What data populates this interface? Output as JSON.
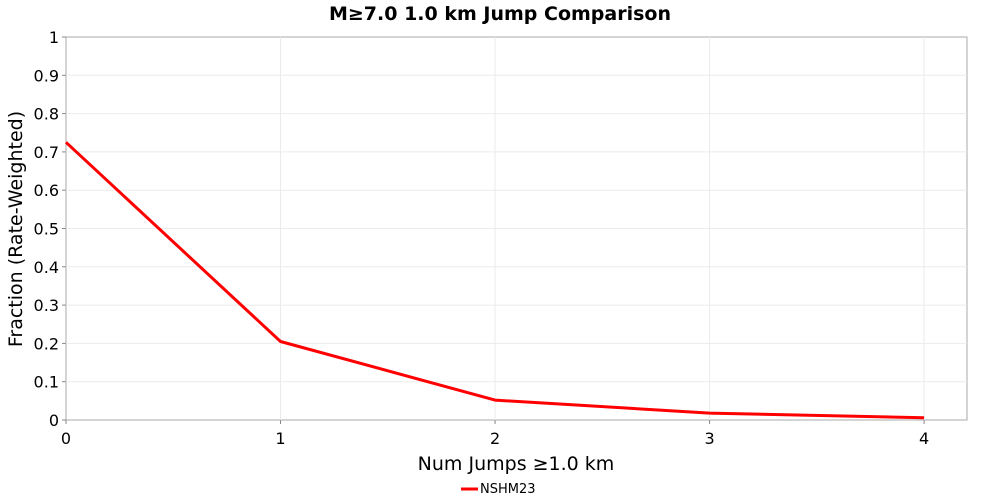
{
  "chart_data": {
    "type": "line",
    "title": "M≥7.0 1.0 km Jump Comparison",
    "xlabel": "Num Jumps ≥1.0 km",
    "ylabel": "Fraction (Rate-Weighted)",
    "xlim": [
      0,
      4.2
    ],
    "ylim": [
      0,
      1
    ],
    "xticks": [
      0,
      1,
      2,
      3,
      4
    ],
    "yticks": [
      0,
      0.1,
      0.2,
      0.3,
      0.4,
      0.5,
      0.6,
      0.7,
      0.8,
      0.9,
      1
    ],
    "ytick_labels": [
      "0",
      "0.1",
      "0.2",
      "0.3",
      "0.4",
      "0.5",
      "0.6",
      "0.7",
      "0.8",
      "0.9",
      "1"
    ],
    "grid": true,
    "legend_position": "bottom-center",
    "series": [
      {
        "name": "NSHM23",
        "color": "#ff0000",
        "x": [
          0,
          1,
          2,
          3,
          4
        ],
        "y": [
          0.725,
          0.205,
          0.052,
          0.018,
          0.006
        ]
      }
    ]
  }
}
